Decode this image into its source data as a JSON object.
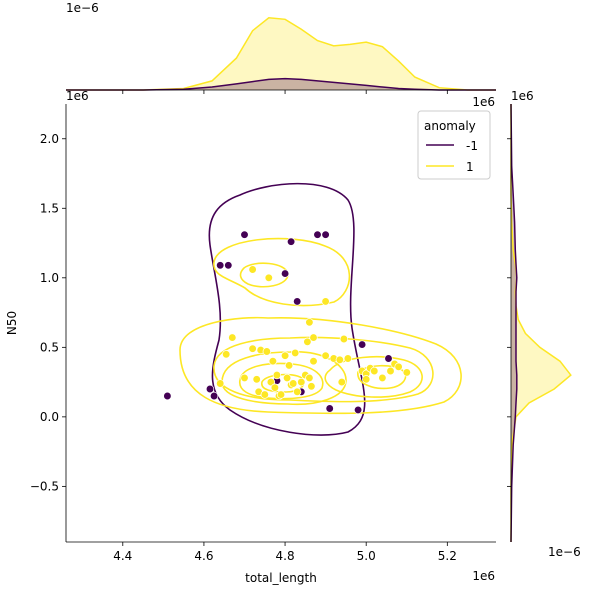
{
  "chart_data": {
    "type": "scatter",
    "title": "",
    "xlabel": "total_length",
    "ylabel": "N50",
    "x_scale_label": "1e6",
    "y_scale_label": "1e6",
    "top_marginal_scale_label": "1e−6",
    "right_marginal_scale_label": "1e−6",
    "right_marginal_corner_label": "1e6",
    "top_marginal_corner_label": "1e6",
    "xlim": [
      4.26,
      5.32
    ],
    "ylim": [
      -0.9,
      2.25
    ],
    "xticks": [
      "4.4",
      "4.6",
      "4.8",
      "5.0",
      "5.2"
    ],
    "yticks": [
      "−0.5",
      "0.0",
      "0.5",
      "1.0",
      "1.5",
      "2.0"
    ],
    "xtick_values": [
      4.4,
      4.6,
      4.8,
      5.0,
      5.2
    ],
    "ytick_values": [
      -0.5,
      0.0,
      0.5,
      1.0,
      1.5,
      2.0
    ],
    "grid": false,
    "legend": {
      "title": "anomaly",
      "placement": "top-right",
      "entries": [
        {
          "label": "-1",
          "color": "#440154"
        },
        {
          "label": "1",
          "color": "#fde725"
        }
      ]
    },
    "series": [
      {
        "name": "-1",
        "color": "#440154",
        "points": [
          [
            4.51,
            0.15
          ],
          [
            4.615,
            0.2
          ],
          [
            4.625,
            0.15
          ],
          [
            4.64,
            1.09
          ],
          [
            4.66,
            1.09
          ],
          [
            4.7,
            1.31
          ],
          [
            4.8,
            1.03
          ],
          [
            4.815,
            1.26
          ],
          [
            4.83,
            0.83
          ],
          [
            4.78,
            0.26
          ],
          [
            4.84,
            0.18
          ],
          [
            4.88,
            1.31
          ],
          [
            4.9,
            1.31
          ],
          [
            4.91,
            0.06
          ],
          [
            4.98,
            0.05
          ],
          [
            4.99,
            0.52
          ],
          [
            5.055,
            0.42
          ]
        ]
      },
      {
        "name": "1",
        "color": "#fde725",
        "points": [
          [
            4.64,
            0.24
          ],
          [
            4.655,
            0.45
          ],
          [
            4.67,
            0.57
          ],
          [
            4.7,
            0.28
          ],
          [
            4.72,
            0.49
          ],
          [
            4.72,
            1.06
          ],
          [
            4.73,
            0.27
          ],
          [
            4.735,
            0.18
          ],
          [
            4.74,
            0.48
          ],
          [
            4.75,
            0.16
          ],
          [
            4.755,
            0.47
          ],
          [
            4.76,
            1.0
          ],
          [
            4.765,
            0.25
          ],
          [
            4.77,
            0.4
          ],
          [
            4.775,
            0.21
          ],
          [
            4.78,
            0.3
          ],
          [
            4.785,
            0.15
          ],
          [
            4.79,
            0.16
          ],
          [
            4.8,
            0.44
          ],
          [
            4.805,
            0.28
          ],
          [
            4.81,
            0.37
          ],
          [
            4.815,
            0.23
          ],
          [
            4.82,
            0.24
          ],
          [
            4.825,
            0.46
          ],
          [
            4.83,
            0.18
          ],
          [
            4.84,
            0.25
          ],
          [
            4.85,
            0.3
          ],
          [
            4.855,
            0.54
          ],
          [
            4.86,
            0.68
          ],
          [
            4.86,
            0.28
          ],
          [
            4.865,
            0.22
          ],
          [
            4.87,
            0.57
          ],
          [
            4.87,
            0.4
          ],
          [
            4.9,
            0.83
          ],
          [
            4.9,
            0.44
          ],
          [
            4.92,
            0.42
          ],
          [
            4.935,
            0.41
          ],
          [
            4.94,
            0.25
          ],
          [
            4.945,
            0.56
          ],
          [
            4.955,
            0.42
          ],
          [
            4.99,
            0.33
          ],
          [
            5.0,
            0.31
          ],
          [
            5.0,
            0.27
          ],
          [
            5.01,
            0.35
          ],
          [
            5.02,
            0.33
          ],
          [
            5.04,
            0.28
          ],
          [
            5.06,
            0.33
          ],
          [
            5.07,
            0.38
          ],
          [
            5.08,
            0.36
          ],
          [
            5.1,
            0.32
          ]
        ]
      }
    ],
    "marginal_x_density": {
      "x": [
        4.26,
        4.35,
        4.45,
        4.55,
        4.62,
        4.68,
        4.72,
        4.76,
        4.8,
        4.84,
        4.88,
        4.92,
        4.96,
        5.0,
        5.04,
        5.08,
        5.12,
        5.18,
        5.25,
        5.32
      ],
      "series_1": [
        0.0,
        0.0,
        0.0,
        0.02,
        0.12,
        0.42,
        0.78,
        0.95,
        0.93,
        0.8,
        0.65,
        0.58,
        0.6,
        0.63,
        0.57,
        0.38,
        0.17,
        0.03,
        0.0,
        0.0
      ],
      "series_neg1": [
        0.0,
        0.0,
        0.0,
        0.01,
        0.04,
        0.08,
        0.11,
        0.14,
        0.15,
        0.14,
        0.12,
        0.1,
        0.08,
        0.06,
        0.04,
        0.02,
        0.01,
        0.0,
        0.0,
        0.0
      ]
    },
    "marginal_y_density": {
      "y": [
        -0.9,
        -0.5,
        -0.2,
        0.0,
        0.1,
        0.2,
        0.3,
        0.4,
        0.5,
        0.6,
        0.7,
        0.8,
        0.9,
        1.0,
        1.1,
        1.2,
        1.4,
        1.6,
        1.8,
        2.25
      ],
      "series_1": [
        0.0,
        0.0,
        0.01,
        0.07,
        0.25,
        0.6,
        0.83,
        0.68,
        0.4,
        0.2,
        0.1,
        0.07,
        0.06,
        0.08,
        0.06,
        0.03,
        0.01,
        0.0,
        0.0,
        0.0
      ],
      "series_neg1": [
        0.0,
        0.01,
        0.03,
        0.06,
        0.07,
        0.08,
        0.08,
        0.07,
        0.07,
        0.07,
        0.07,
        0.07,
        0.07,
        0.08,
        0.07,
        0.06,
        0.05,
        0.03,
        0.01,
        0.0
      ]
    }
  }
}
